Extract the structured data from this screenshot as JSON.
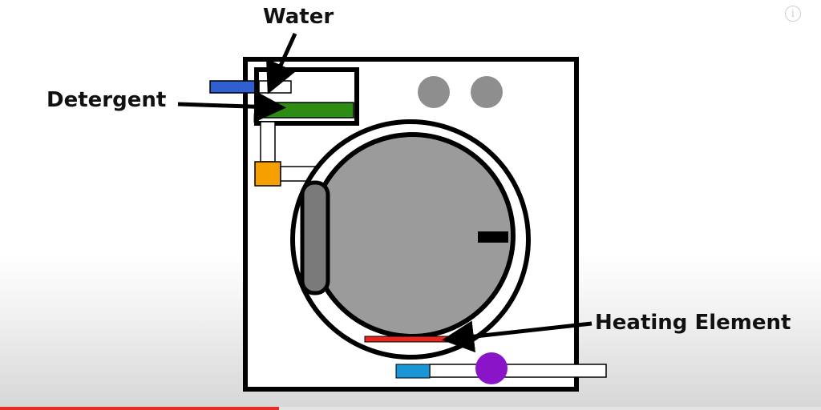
{
  "labels": {
    "water": "Water",
    "detergent": "Detergent",
    "heating_element": "Heating Element"
  },
  "info_icon": "info-icon",
  "progress": {
    "fraction": 0.34
  },
  "colors": {
    "outline": "#000000",
    "drum": "#9b9b9b",
    "door_handle": "#7a7a7a",
    "knobs": "#8e8e8e",
    "water_pipe": "#2f5fd0",
    "detergent": "#2e8b14",
    "valve": "#f5a000",
    "heater": "#e8261f",
    "pump_inlet": "#1a96d4",
    "pump": "#8a14c8",
    "progress": "#e52d27"
  }
}
